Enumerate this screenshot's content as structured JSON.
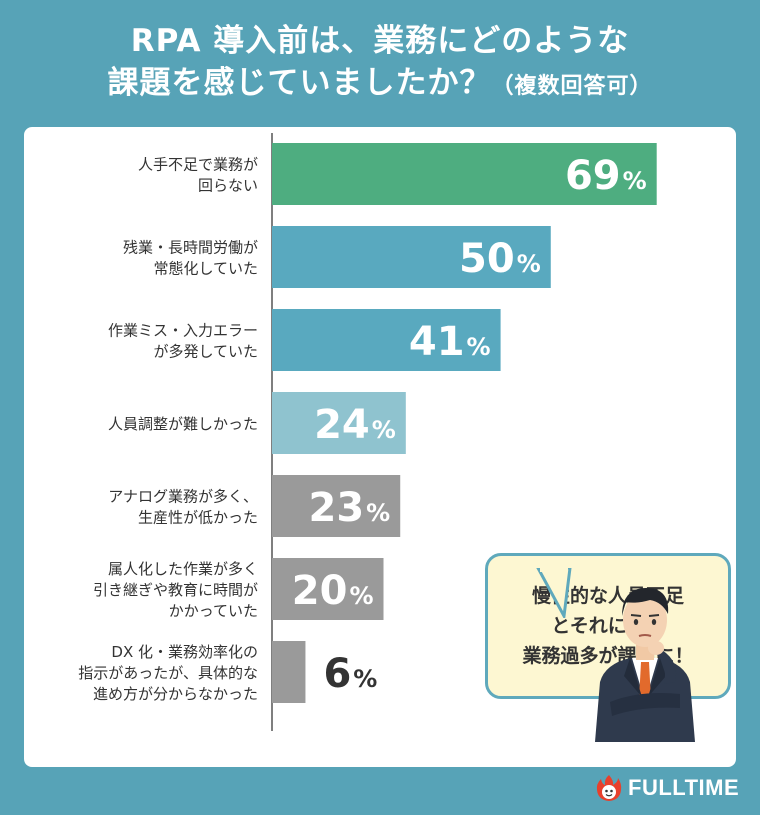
{
  "title": {
    "line1": "RPA 導入前は、業務にどのような",
    "line2": "課題を感じていましたか？",
    "note": "（複数回答可）"
  },
  "chart_data": {
    "type": "bar",
    "orientation": "horizontal",
    "categories": [
      [
        "人手不足で業務が",
        "回らない"
      ],
      [
        "残業・長時間労働が",
        "常態化していた"
      ],
      [
        "作業ミス・入力エラー",
        "が多発していた"
      ],
      [
        "人員調整が難しかった"
      ],
      [
        "アナログ業務が多く、",
        "生産性が低かった"
      ],
      [
        "属人化した作業が多く",
        "引き継ぎや教育に時間が",
        "かかっていた"
      ],
      [
        "DX 化・業務効率化の",
        "指示があったが、具体的な",
        "進め方が分からなかった"
      ]
    ],
    "values": [
      69,
      50,
      41,
      24,
      23,
      20,
      6
    ],
    "unit": "%",
    "xlim": [
      0,
      73
    ],
    "bar_colors": [
      "#4ead80",
      "#59a9bf",
      "#59a9bf",
      "#8fc3cf",
      "#9a9a9a",
      "#9a9a9a",
      "#9a9a9a"
    ],
    "label_colors": [
      "#ffffff",
      "#ffffff",
      "#ffffff",
      "#ffffff",
      "#ffffff",
      "#ffffff",
      "#333333"
    ]
  },
  "callout": {
    "lines": [
      "慢性的な人員不足",
      "とそれに伴う",
      "業務過多が課題に！"
    ]
  },
  "logo": {
    "text": "FULLTIME"
  },
  "colors": {
    "background": "#57a3b7",
    "axis": "#555555"
  }
}
